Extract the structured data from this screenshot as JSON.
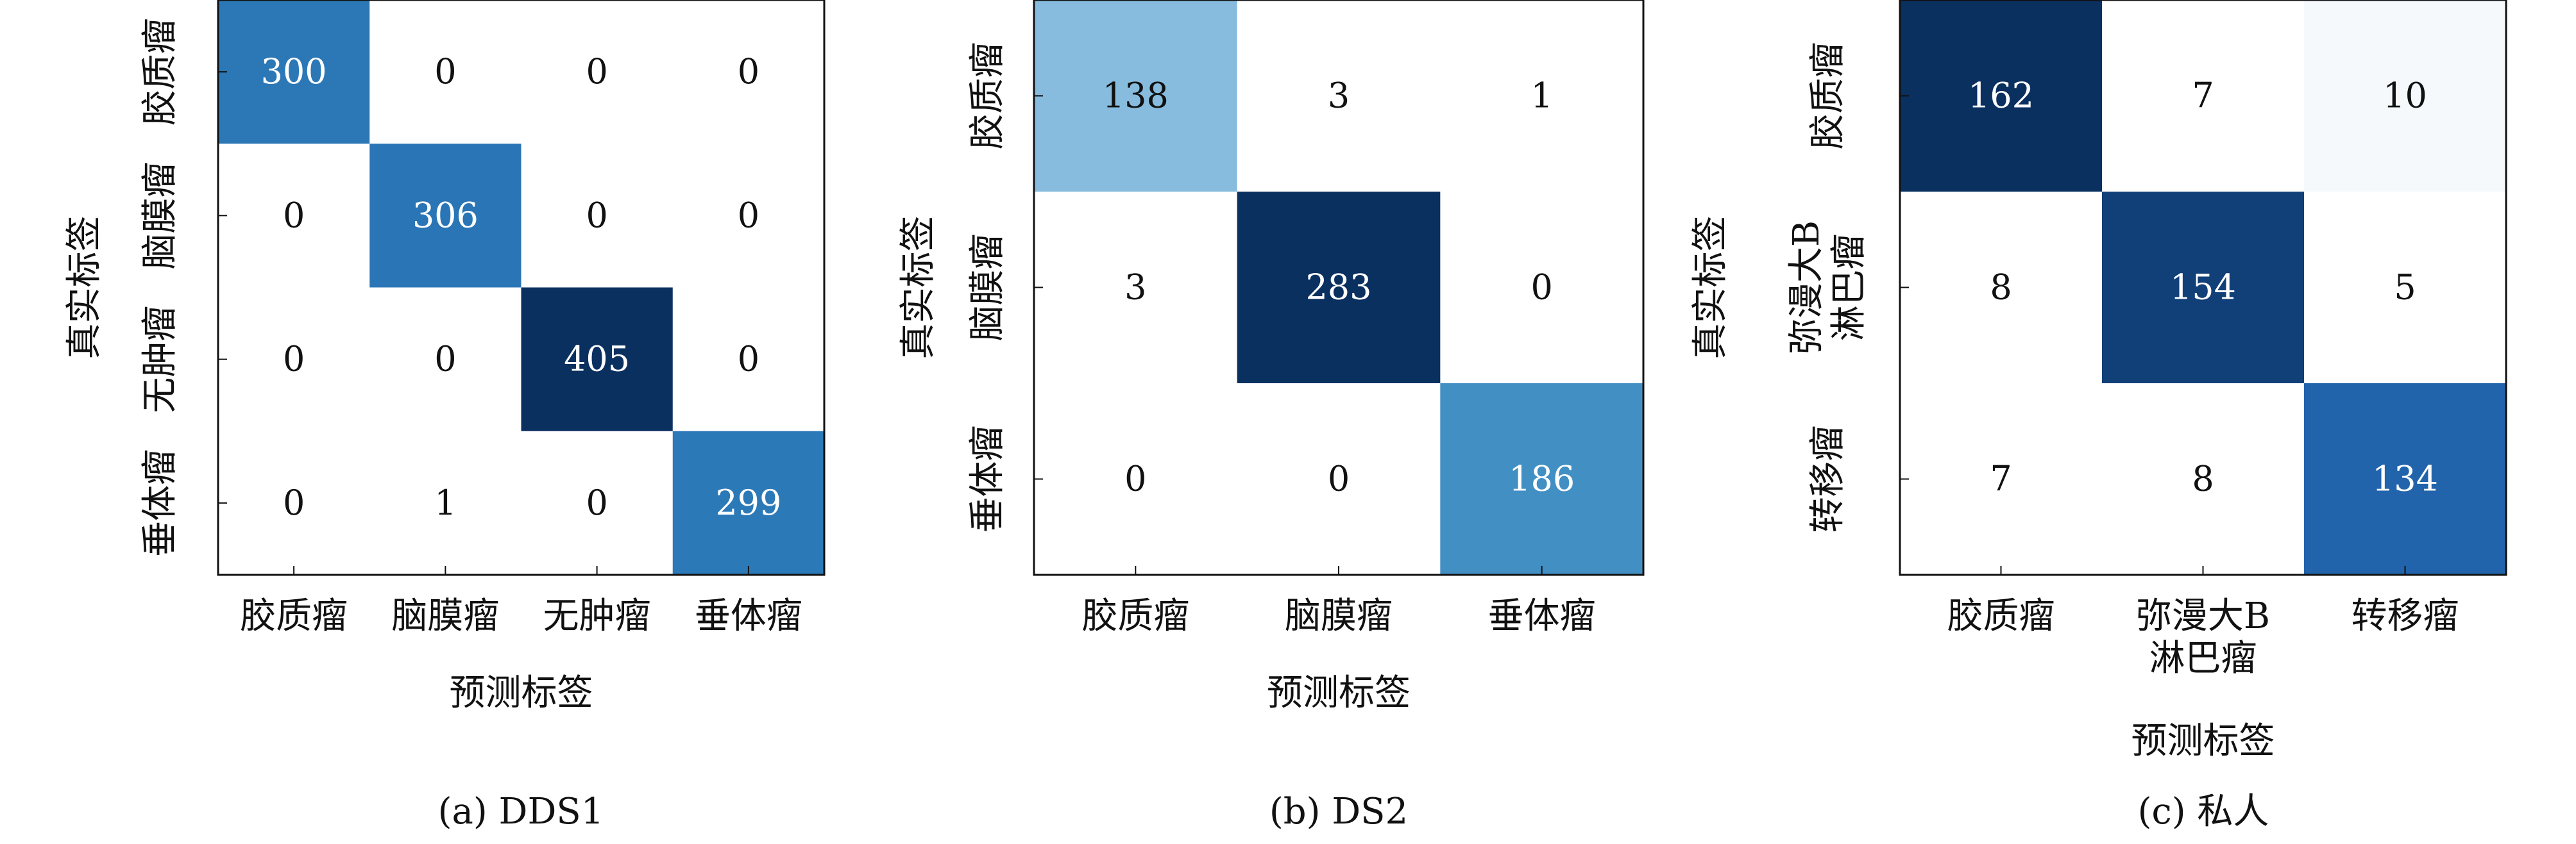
{
  "chart_data": [
    {
      "type": "heatmap",
      "caption": "(a) DDS1",
      "xlabel": "预测标签",
      "ylabel": "真实标签",
      "categories": [
        "胶质瘤",
        "脑膜瘤",
        "无肿瘤",
        "垂体瘤"
      ],
      "x_tick_labels": [
        [
          "胶质瘤"
        ],
        [
          "脑膜瘤"
        ],
        [
          "无肿瘤"
        ],
        [
          "垂体瘤"
        ]
      ],
      "y_tick_labels": [
        [
          "胶质瘤"
        ],
        [
          "脑膜瘤"
        ],
        [
          "无肿瘤"
        ],
        [
          "垂体瘤"
        ]
      ],
      "values": [
        [
          300,
          0,
          0,
          0
        ],
        [
          0,
          306,
          0,
          0
        ],
        [
          0,
          0,
          405,
          0
        ],
        [
          0,
          1,
          0,
          299
        ]
      ],
      "colormap": "Blues",
      "color_low": "#ffffff",
      "color_high": "#0a3060"
    },
    {
      "type": "heatmap",
      "caption": "(b) DS2",
      "xlabel": "预测标签",
      "ylabel": "真实标签",
      "categories": [
        "胶质瘤",
        "脑膜瘤",
        "垂体瘤"
      ],
      "x_tick_labels": [
        [
          "胶质瘤"
        ],
        [
          "脑膜瘤"
        ],
        [
          "垂体瘤"
        ]
      ],
      "y_tick_labels": [
        [
          "胶质瘤"
        ],
        [
          "脑膜瘤"
        ],
        [
          "垂体瘤"
        ]
      ],
      "values": [
        [
          138,
          3,
          1
        ],
        [
          3,
          283,
          0
        ],
        [
          0,
          0,
          186
        ]
      ],
      "colormap": "Blues",
      "color_low": "#ffffff",
      "color_high": "#0a3060"
    },
    {
      "type": "heatmap",
      "caption": "(c) 私人",
      "xlabel": "预测标签",
      "ylabel": "真实标签",
      "categories": [
        "胶质瘤",
        "弥漫大B淋巴瘤",
        "转移瘤"
      ],
      "x_tick_labels": [
        [
          "胶质瘤"
        ],
        [
          "弥漫大B",
          "淋巴瘤"
        ],
        [
          "转移瘤"
        ]
      ],
      "y_tick_labels": [
        [
          "胶质瘤"
        ],
        [
          "弥漫大B",
          "淋巴瘤"
        ],
        [
          "转移瘤"
        ]
      ],
      "values": [
        [
          162,
          7,
          10
        ],
        [
          8,
          154,
          5
        ],
        [
          7,
          8,
          134
        ]
      ],
      "colormap": "Blues",
      "color_low": "#ffffff",
      "color_high": "#0a3060"
    }
  ]
}
